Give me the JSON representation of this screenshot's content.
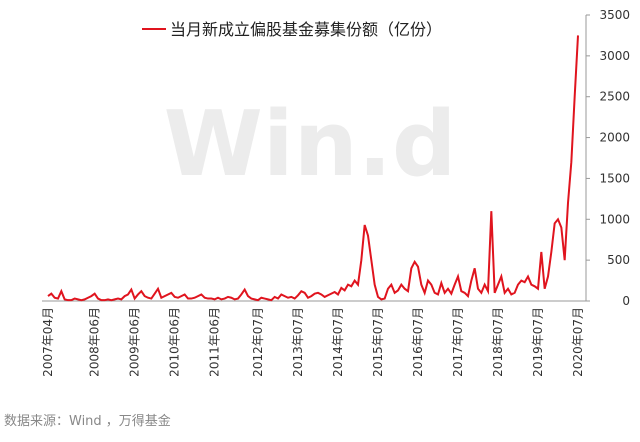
{
  "chart_data": {
    "type": "line",
    "watermark": "Win.d",
    "source": "数据来源：Wind ，万得基金",
    "categories": [
      "2007年04月",
      null,
      null,
      null,
      null,
      null,
      null,
      null,
      null,
      null,
      null,
      null,
      null,
      null,
      "2008年06月",
      null,
      null,
      null,
      null,
      null,
      null,
      null,
      null,
      null,
      null,
      null,
      "2009年06月",
      null,
      null,
      null,
      null,
      null,
      null,
      null,
      null,
      null,
      null,
      null,
      "2010年06月",
      null,
      null,
      null,
      null,
      null,
      null,
      null,
      null,
      null,
      null,
      null,
      "2011年06月",
      null,
      null,
      null,
      null,
      null,
      null,
      null,
      null,
      null,
      null,
      null,
      null,
      "2012年07月",
      null,
      null,
      null,
      null,
      null,
      null,
      null,
      null,
      null,
      null,
      null,
      "2013年07月",
      null,
      null,
      null,
      null,
      null,
      null,
      null,
      null,
      null,
      null,
      null,
      "2014年07月",
      null,
      null,
      null,
      null,
      null,
      null,
      null,
      null,
      null,
      null,
      null,
      "2015年07月",
      null,
      null,
      null,
      null,
      null,
      null,
      null,
      null,
      null,
      null,
      null,
      "2016年07月",
      null,
      null,
      null,
      null,
      null,
      null,
      null,
      null,
      null,
      null,
      null,
      "2017年07月",
      null,
      null,
      null,
      null,
      null,
      null,
      null,
      null,
      null,
      null,
      null,
      "2018年07月",
      null,
      null,
      null,
      null,
      null,
      null,
      null,
      null,
      null,
      null,
      null,
      "2019年07月",
      null,
      null,
      null,
      null,
      null,
      null,
      null,
      null,
      null,
      null,
      null,
      "2020年07月"
    ],
    "series": [
      {
        "name": "当月新成立偏股基金募集份额（亿份）",
        "color": "#e0141e",
        "values": [
          60,
          90,
          40,
          30,
          120,
          20,
          10,
          10,
          30,
          20,
          10,
          20,
          40,
          60,
          90,
          30,
          10,
          10,
          20,
          10,
          20,
          30,
          20,
          60,
          80,
          140,
          30,
          80,
          120,
          60,
          40,
          30,
          90,
          150,
          40,
          60,
          80,
          100,
          50,
          40,
          60,
          80,
          30,
          30,
          40,
          60,
          80,
          40,
          30,
          30,
          20,
          40,
          20,
          30,
          50,
          40,
          20,
          30,
          80,
          140,
          60,
          30,
          20,
          10,
          40,
          30,
          20,
          10,
          50,
          30,
          80,
          60,
          40,
          50,
          30,
          70,
          120,
          100,
          40,
          60,
          90,
          100,
          80,
          50,
          70,
          90,
          110,
          80,
          160,
          130,
          200,
          180,
          250,
          200,
          500,
          930,
          800,
          500,
          200,
          50,
          20,
          30,
          150,
          200,
          100,
          130,
          200,
          150,
          120,
          400,
          480,
          420,
          200,
          100,
          250,
          200,
          100,
          80,
          220,
          100,
          150,
          90,
          200,
          300,
          120,
          100,
          60,
          250,
          400,
          150,
          100,
          200,
          120,
          1100,
          100,
          200,
          300,
          100,
          150,
          80,
          100,
          200,
          250,
          230,
          300,
          200,
          180,
          150,
          600,
          150,
          300,
          600,
          950,
          1000,
          900,
          500,
          1200,
          1700,
          2500,
          3250
        ]
      }
    ],
    "ylim": [
      0,
      3500
    ],
    "yticks": [
      0,
      500,
      1000,
      1500,
      2000,
      2500,
      3000,
      3500
    ]
  }
}
